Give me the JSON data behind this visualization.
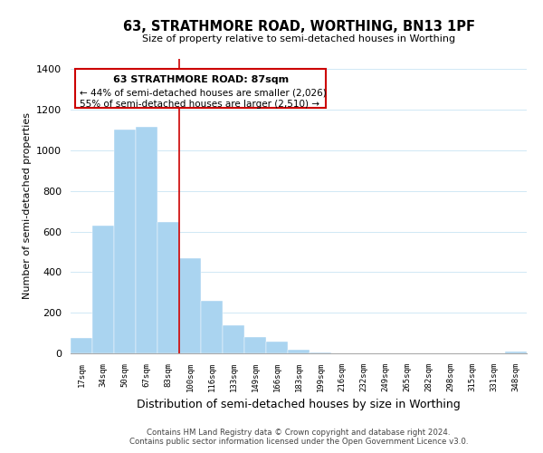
{
  "title": "63, STRATHMORE ROAD, WORTHING, BN13 1PF",
  "subtitle": "Size of property relative to semi-detached houses in Worthing",
  "xlabel": "Distribution of semi-detached houses by size in Worthing",
  "ylabel": "Number of semi-detached properties",
  "bar_labels": [
    "17sqm",
    "34sqm",
    "50sqm",
    "67sqm",
    "83sqm",
    "100sqm",
    "116sqm",
    "133sqm",
    "149sqm",
    "166sqm",
    "183sqm",
    "199sqm",
    "216sqm",
    "232sqm",
    "249sqm",
    "265sqm",
    "282sqm",
    "298sqm",
    "315sqm",
    "331sqm",
    "348sqm"
  ],
  "bar_values": [
    75,
    630,
    1100,
    1115,
    645,
    470,
    260,
    140,
    80,
    60,
    20,
    5,
    0,
    0,
    0,
    0,
    0,
    0,
    0,
    0,
    10
  ],
  "bar_color": "#aad4f0",
  "red_line_x": 4.5,
  "ylim": [
    0,
    1450
  ],
  "yticks": [
    0,
    200,
    400,
    600,
    800,
    1000,
    1200,
    1400
  ],
  "annotation_title": "63 STRATHMORE ROAD: 87sqm",
  "annotation_line1": "← 44% of semi-detached houses are smaller (2,026)",
  "annotation_line2": "55% of semi-detached houses are larger (2,510) →",
  "footer_line1": "Contains HM Land Registry data © Crown copyright and database right 2024.",
  "footer_line2": "Contains public sector information licensed under the Open Government Licence v3.0.",
  "background_color": "#ffffff",
  "grid_color": "#d0e8f5"
}
